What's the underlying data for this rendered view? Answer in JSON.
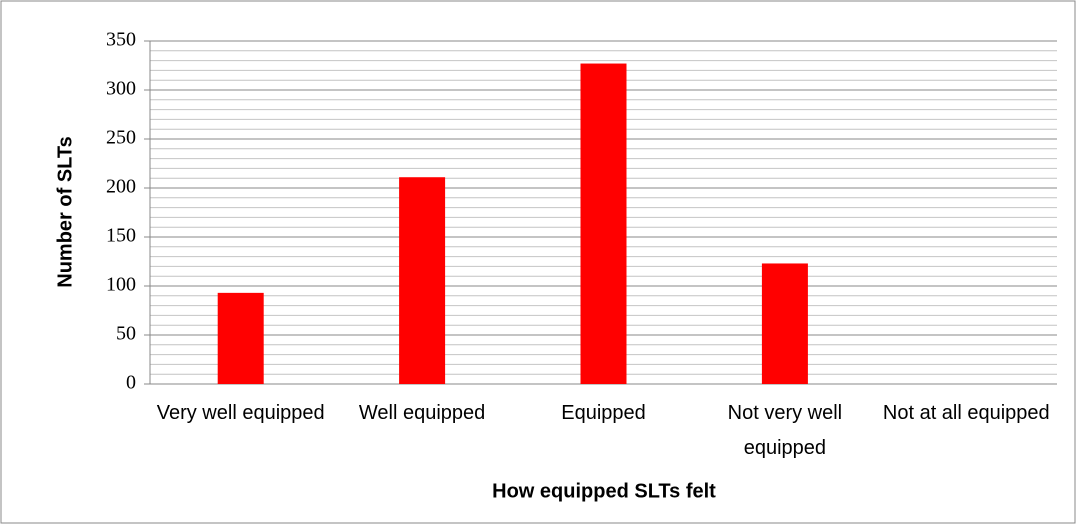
{
  "chart_data": {
    "type": "bar",
    "categories": [
      "Very well equipped",
      "Well equipped",
      "Equipped",
      "Not very well equipped",
      "Not at all equipped"
    ],
    "values": [
      93,
      211,
      327,
      123,
      0
    ],
    "color": "#ff0000",
    "xlabel": "How equipped SLTs felt",
    "ylabel": "Number of SLTs",
    "ylim": [
      0,
      350
    ],
    "yticks": [
      0,
      50,
      100,
      150,
      200,
      250,
      300,
      350
    ],
    "yminorticks": [
      0,
      10,
      20,
      30,
      40,
      50,
      60,
      70,
      80,
      90,
      100,
      110,
      120,
      130,
      140,
      150,
      160,
      170,
      180,
      190,
      200,
      210,
      220,
      230,
      240,
      250,
      260,
      270,
      280,
      290,
      300,
      310,
      320,
      330,
      340,
      350
    ],
    "grid": true
  }
}
